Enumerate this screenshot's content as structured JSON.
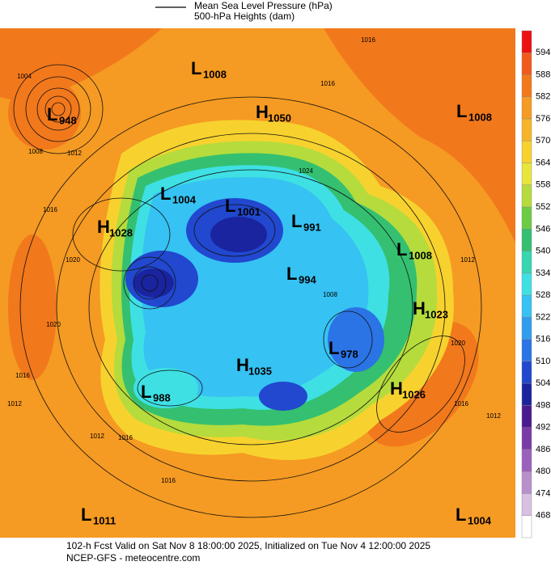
{
  "legend": {
    "pressure": "Mean Sea Level Pressure (hPa)",
    "heights": "500-hPa Heights (dam)"
  },
  "centers": [
    {
      "letter": "L",
      "value": 1008
    },
    {
      "letter": "H",
      "value": 1050
    },
    {
      "letter": "L",
      "value": 1008
    },
    {
      "letter": "L",
      "value": 948
    },
    {
      "letter": "L",
      "value": 1004
    },
    {
      "letter": "L",
      "value": 1001
    },
    {
      "letter": "L",
      "value": 991
    },
    {
      "letter": "H",
      "value": 1028
    },
    {
      "letter": "L",
      "value": 1008
    },
    {
      "letter": "L",
      "value": 994
    },
    {
      "letter": "H",
      "value": 1023
    },
    {
      "letter": "L",
      "value": 978
    },
    {
      "letter": "H",
      "value": 1035
    },
    {
      "letter": "H",
      "value": 1026
    },
    {
      "letter": "L",
      "value": 988
    },
    {
      "letter": "L",
      "value": 1011
    },
    {
      "letter": "L",
      "value": 1004
    }
  ],
  "contour_labels": [
    1016,
    1016,
    1004,
    1008,
    1012,
    1016,
    1020,
    1020,
    1016,
    1012,
    1012,
    1016,
    1016,
    1024,
    1012,
    1020,
    1016,
    1012,
    1008
  ],
  "colorbar": {
    "ticks": [
      594,
      588,
      582,
      576,
      570,
      564,
      558,
      552,
      546,
      540,
      534,
      528,
      522,
      516,
      510,
      504,
      498,
      492,
      486,
      480,
      474,
      468
    ],
    "colors": [
      "#ee1111",
      "#f25a1c",
      "#f2781c",
      "#f59a22",
      "#f8b428",
      "#f7d22e",
      "#e8e63a",
      "#b5dc3c",
      "#6ccd44",
      "#34c070",
      "#36d6b0",
      "#3ee0e4",
      "#36c2f2",
      "#2f9cee",
      "#2a74e6",
      "#2148cf",
      "#1a249e",
      "#4a1a90",
      "#7a3aa8",
      "#9a62bc",
      "#b890cc",
      "#d8c0e2",
      "#ffffff"
    ]
  },
  "footer": [
    "102-h Fcst Valid on Sat Nov  8 18:00:00 2025, Initialized on Tue Nov  4 12:00:00 2025",
    "NCEP-GFS  - meteocentre.com"
  ]
}
